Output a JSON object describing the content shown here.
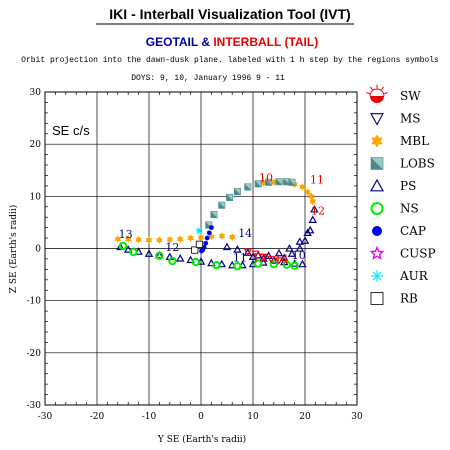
{
  "header": {
    "title": "IKI - Interball Visualization Tool (IVT)",
    "sub_part1": "GEOTAIL",
    "sub_amp": " & ",
    "sub_part2": "INTERBALL (TAIL)",
    "desc": "Orbit projection into the dawn-dusk plane. labeled with 1 h step by the regions symbols",
    "date": "DOYS: 9, 10,   January 1996 9 - 11"
  },
  "colors": {
    "geotail_red": "#0000aa",
    "interball_red": "#ee0000",
    "orange": "#ffa500",
    "green": "#00ee00",
    "navy": "#000080",
    "blue": "#0000ee",
    "teal": "#4a8a8a",
    "magenta": "#ee00ee",
    "cyan": "#00e5ff",
    "red": "#ee0000"
  },
  "chart_data": {
    "type": "scatter",
    "frame_label": "SE c/s",
    "xlabel": "Y SE (Earth's radii)",
    "ylabel": "Z SE (Earth's radii)",
    "xlim": [
      -30,
      30
    ],
    "ylim": [
      -30,
      30
    ],
    "xticks": [
      -30,
      -20,
      -10,
      0,
      10,
      20,
      30
    ],
    "yticks": [
      -30,
      -20,
      -10,
      0,
      10,
      20,
      30
    ],
    "grid": true,
    "legend_position": "right",
    "legend": [
      {
        "label": "SW",
        "icon": "sun-half-icon"
      },
      {
        "label": "MS",
        "icon": "triangle-down-icon"
      },
      {
        "label": "MBL",
        "icon": "star-of-david-icon"
      },
      {
        "label": "LOBS",
        "icon": "split-square-icon"
      },
      {
        "label": "PS",
        "icon": "triangle-up-icon"
      },
      {
        "label": "NS",
        "icon": "circle-outline-icon"
      },
      {
        "label": "CAP",
        "icon": "filled-dot-icon"
      },
      {
        "label": "CUSP",
        "icon": "star-outline-icon"
      },
      {
        "label": "AUR",
        "icon": "asterisk-icon"
      },
      {
        "label": "RB",
        "icon": "small-square-icon"
      }
    ],
    "hour_labels": [
      {
        "text": "10",
        "x": 12.5,
        "y": 12.8,
        "color": "red"
      },
      {
        "text": "11",
        "x": 22.3,
        "y": 12.5,
        "color": "red"
      },
      {
        "text": "12",
        "x": 22.5,
        "y": 6.5,
        "color": "red"
      },
      {
        "text": "13",
        "x": -14.5,
        "y": 2.0,
        "color": "navy"
      },
      {
        "text": "12",
        "x": -5.5,
        "y": -0.5,
        "color": "navy"
      },
      {
        "text": "14",
        "x": 8.5,
        "y": 2.2,
        "color": "navy"
      },
      {
        "text": "11",
        "x": 7.5,
        "y": -2.5,
        "color": "navy"
      },
      {
        "text": "10",
        "x": 18.8,
        "y": -2.0,
        "color": "navy"
      },
      {
        "text": "13",
        "x": 11.2,
        "y": -2.5,
        "color": "red"
      },
      {
        "text": "14",
        "x": 15.5,
        "y": -2.8,
        "color": "red"
      }
    ],
    "series": [
      {
        "name": "MBL",
        "marker": "star-of-david",
        "color": "orange",
        "x": [
          -16,
          -14,
          -12,
          -10,
          -8,
          -6,
          -4,
          -2,
          0,
          2,
          4,
          6,
          12,
          14,
          16,
          18,
          19.5,
          20.5,
          21.2,
          21.5
        ],
        "y": [
          1.8,
          1.8,
          1.7,
          1.6,
          1.6,
          1.7,
          1.8,
          2.0,
          2.1,
          2.3,
          2.4,
          2.2,
          12.6,
          12.7,
          12.7,
          12.3,
          11.8,
          10.8,
          10.0,
          9.0
        ]
      },
      {
        "name": "LOBS",
        "marker": "split-square",
        "color": "teal",
        "x": [
          1.5,
          2.5,
          4.0,
          5.5,
          7.0,
          9.0,
          11.0,
          13.0,
          15.0,
          16.5,
          17.5
        ],
        "y": [
          4.5,
          6.5,
          8.3,
          9.8,
          10.9,
          11.8,
          12.4,
          12.7,
          12.8,
          12.8,
          12.7
        ]
      },
      {
        "name": "PS",
        "marker": "triangle-up",
        "color": "navy",
        "x": [
          -15.5,
          -14,
          -12,
          -10,
          -8,
          -6,
          -4,
          -2,
          0,
          2,
          4,
          6,
          8,
          10,
          12,
          14,
          16,
          17.5,
          19,
          20,
          21,
          21.5,
          21.8,
          20.5,
          19,
          17,
          15,
          13,
          11,
          9,
          7,
          5,
          10,
          12,
          14,
          16,
          18,
          19.5
        ],
        "y": [
          0.3,
          -0.2,
          -0.6,
          -1.0,
          -1.3,
          -1.6,
          -1.9,
          -2.2,
          -2.5,
          -2.8,
          -3.0,
          -3.2,
          -3.2,
          -3.0,
          -2.7,
          -2.3,
          -1.8,
          -1.0,
          0.0,
          1.5,
          3.5,
          5.5,
          7.5,
          3.0,
          1.3,
          0.0,
          -0.9,
          -1.4,
          -1.3,
          -0.8,
          -0.2,
          0.3,
          -1.6,
          -1.9,
          -2.3,
          -2.6,
          -2.9,
          -3.0
        ]
      },
      {
        "name": "NS",
        "marker": "circle-outline",
        "color": "green",
        "x": [
          -15,
          -13,
          -8,
          -5.5,
          -1,
          3,
          7,
          11,
          14,
          16.5,
          18
        ],
        "y": [
          0.5,
          -0.7,
          -1.4,
          -2.4,
          -2.6,
          -3.2,
          -3.4,
          -2.9,
          -3.0,
          -3.1,
          -3.3
        ]
      },
      {
        "name": "CAP",
        "marker": "filled-dot",
        "color": "blue",
        "x": [
          0.1,
          0.3,
          0.6,
          0.9,
          1.2,
          1.6,
          2.0
        ],
        "y": [
          -0.5,
          -0.3,
          0.2,
          1.0,
          2.0,
          3.0,
          4.0
        ]
      },
      {
        "name": "AUR",
        "marker": "asterisk",
        "color": "cyan",
        "x": [
          -0.4
        ],
        "y": [
          3.4
        ]
      },
      {
        "name": "RB",
        "marker": "small-square",
        "color": "black",
        "x": [
          -1.2,
          -0.3
        ],
        "y": [
          -0.3,
          0.8
        ]
      },
      {
        "name": "MS",
        "marker": "triangle-down",
        "color": "red",
        "x": [
          9.0,
          10.5,
          12.0,
          13.5,
          15.0
        ],
        "y": [
          -0.6,
          -1.0,
          -1.6,
          -2.0,
          -2.3
        ]
      }
    ]
  }
}
